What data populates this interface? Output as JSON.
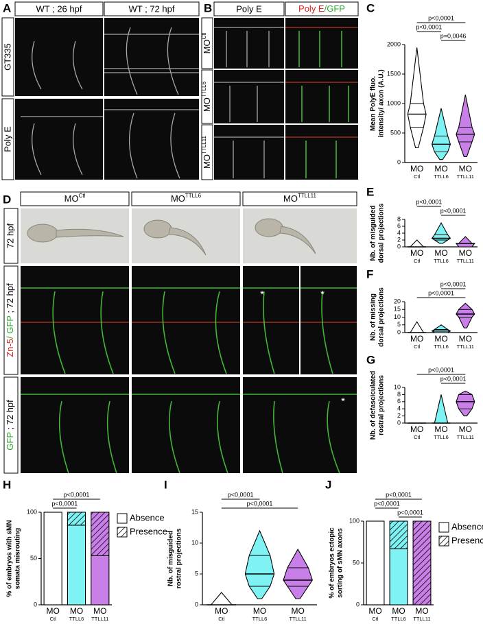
{
  "panels": {
    "A": {
      "letter": "A",
      "columns": [
        "WT ; 26 hpf",
        "WT ; 72 hpf"
      ],
      "rows": [
        "GT335",
        "Poly E"
      ]
    },
    "B": {
      "letter": "B",
      "column": "Poly E",
      "merge_header": [
        "Poly E",
        "/GFP"
      ],
      "rows": [
        {
          "base": "MO",
          "sup": "Ctl"
        },
        {
          "base": "MO",
          "sup": "TTLL6"
        },
        {
          "base": "MO",
          "sup": "TTLL11"
        }
      ]
    },
    "D": {
      "letter": "D",
      "columns": [
        {
          "base": "MO",
          "sup": "Ctl"
        },
        {
          "base": "MO",
          "sup": "TTLL6"
        },
        {
          "base": "MO",
          "sup": "TTLL11"
        }
      ],
      "rows": [
        [
          "72 hpf"
        ],
        [
          "Zn-5",
          "/ GFP",
          " ; 72 hpf"
        ],
        [
          "GFP",
          " ; 72 hpf"
        ]
      ],
      "asterisk": "*"
    }
  },
  "chart_data": [
    {
      "letter": "C",
      "type": "violin",
      "ylabel": [
        "Mean PolyE fluo.",
        "intensity/ axon (A.U.)"
      ],
      "categories": [
        "MO",
        "MO",
        "MO"
      ],
      "category_subs": [
        "Ctl",
        "TTLL6",
        "TTLL11"
      ],
      "colors": [
        "#ffffff",
        "#7ff3f3",
        "#c97fe8"
      ],
      "ylim": [
        0,
        2000
      ],
      "yticks": [
        0,
        500,
        1000,
        1500,
        2000
      ],
      "stats": [
        {
          "min": 250,
          "q1": 600,
          "median": 820,
          "q3": 1000,
          "max": 1950
        },
        {
          "min": 50,
          "q1": 180,
          "median": 310,
          "q3": 450,
          "max": 920
        },
        {
          "min": 100,
          "q1": 350,
          "median": 480,
          "q3": 600,
          "max": 1150
        }
      ],
      "comparisons": [
        {
          "pair": [
            0,
            2
          ],
          "label": "p<0,0001"
        },
        {
          "pair": [
            0,
            1
          ],
          "label": "p<0,0001"
        },
        {
          "pair": [
            1,
            2
          ],
          "label": "p=0,0046"
        }
      ]
    },
    {
      "letter": "E",
      "type": "violin",
      "ylabel": [
        "Nb. of misguided",
        "dorsal projections"
      ],
      "categories": [
        "MO",
        "MO",
        "MO"
      ],
      "category_subs": [
        "Ctl",
        "TTLL6",
        "TTLL11"
      ],
      "colors": [
        "#ffffff",
        "#7ff3f3",
        "#c97fe8"
      ],
      "ylim": [
        0,
        8
      ],
      "yticks": [
        0,
        2,
        4,
        6,
        8
      ],
      "stats": [
        {
          "min": 0,
          "q1": 0,
          "median": 0,
          "q3": 0,
          "max": 2
        },
        {
          "min": 1,
          "q1": 2,
          "median": 2.5,
          "q3": 3.5,
          "max": 7
        },
        {
          "min": 0,
          "q1": 0,
          "median": 1,
          "q3": 1,
          "max": 3
        }
      ],
      "comparisons": [
        {
          "pair": [
            0,
            1
          ],
          "label": "p<0,0001"
        },
        {
          "pair": [
            1,
            2
          ],
          "label": "p<0,0001"
        }
      ]
    },
    {
      "letter": "F",
      "type": "violin",
      "ylabel": [
        "Nb. of missing",
        "dorsal projections"
      ],
      "categories": [
        "MO",
        "MO",
        "MO"
      ],
      "category_subs": [
        "Ctl",
        "TTLL6",
        "TTLL11"
      ],
      "colors": [
        "#ffffff",
        "#7ff3f3",
        "#c97fe8"
      ],
      "ylim": [
        0,
        20
      ],
      "yticks": [
        0,
        5,
        10,
        15,
        20
      ],
      "stats": [
        {
          "min": 0,
          "q1": 0,
          "median": 0,
          "q3": 0,
          "max": 7
        },
        {
          "min": 0,
          "q1": 0,
          "median": 1,
          "q3": 2,
          "max": 5
        },
        {
          "min": 3,
          "q1": 10,
          "median": 12,
          "q3": 15,
          "max": 19
        }
      ],
      "comparisons": [
        {
          "pair": [
            1,
            2
          ],
          "label": "p<0,0001"
        },
        {
          "pair": [
            0,
            2
          ],
          "label": "p<0,0001"
        }
      ]
    },
    {
      "letter": "G",
      "type": "violin",
      "ylabel": [
        "Nb. of defasciculated",
        "rostral projections"
      ],
      "categories": [
        "MO",
        "MO",
        "MO"
      ],
      "category_subs": [
        "Ctl",
        "TTLL6",
        "TTLL11"
      ],
      "colors": [
        "#ffffff",
        "#7ff3f3",
        "#c97fe8"
      ],
      "ylim": [
        0,
        10
      ],
      "yticks": [
        0,
        2,
        4,
        6,
        8,
        10
      ],
      "stats": [
        {
          "min": 0,
          "q1": 0,
          "median": 0,
          "q3": 0,
          "max": 0
        },
        {
          "min": 0,
          "q1": 0,
          "median": 0,
          "q3": 0,
          "max": 8
        },
        {
          "min": 2,
          "q1": 4,
          "median": 6,
          "q3": 8,
          "max": 9
        }
      ],
      "comparisons": [
        {
          "pair": [
            0,
            2
          ],
          "label": "p<0,0001"
        },
        {
          "pair": [
            1,
            2
          ],
          "label": "p<0,0001"
        }
      ]
    },
    {
      "letter": "H",
      "type": "stacked_bar",
      "ylabel": [
        "% of embryos with sMN",
        "somata misrouting"
      ],
      "categories": [
        "MO",
        "MO",
        "MO"
      ],
      "category_subs": [
        "Ctl",
        "TTLL6",
        "TTLL11"
      ],
      "colors": [
        "#ffffff",
        "#7ff3f3",
        "#c97fe8"
      ],
      "ylim": [
        0,
        100
      ],
      "yticks": [
        0,
        50,
        100
      ],
      "legend": "right",
      "series": [
        {
          "name": "Absence",
          "values": [
            100,
            86,
            53
          ]
        },
        {
          "name": "Presence",
          "hatched": true,
          "values": [
            0,
            14,
            47
          ]
        }
      ],
      "comparisons": [
        {
          "pair": [
            0,
            2
          ],
          "label": "p<0,0001"
        },
        {
          "pair": [
            0,
            1
          ],
          "label": "p<0,0001"
        }
      ]
    },
    {
      "letter": "I",
      "type": "violin",
      "ylabel": [
        "Nb. of misguided",
        "rostral projections"
      ],
      "categories": [
        "MO",
        "MO",
        "MO"
      ],
      "category_subs": [
        "Ctl",
        "TTLL6",
        "TTLL11"
      ],
      "colors": [
        "#ffffff",
        "#7ff3f3",
        "#c97fe8"
      ],
      "ylim": [
        0,
        15
      ],
      "yticks": [
        0,
        5,
        10,
        15
      ],
      "stats": [
        {
          "min": 0,
          "q1": 0,
          "median": 0,
          "q3": 0,
          "max": 2
        },
        {
          "min": 1,
          "q1": 3,
          "median": 5,
          "q3": 8,
          "max": 12
        },
        {
          "min": 1,
          "q1": 3,
          "median": 4,
          "q3": 6,
          "max": 9
        }
      ],
      "comparisons": [
        {
          "pair": [
            0,
            1
          ],
          "label": "p<0,0001"
        },
        {
          "pair": [
            0,
            2
          ],
          "label": "p<0,0001"
        }
      ]
    },
    {
      "letter": "J",
      "type": "stacked_bar",
      "ylabel": [
        "% of embryos ectopic",
        "sorting of sMN axons"
      ],
      "categories": [
        "MO",
        "MO",
        "MO"
      ],
      "category_subs": [
        "Ctl",
        "TTLL6",
        "TTLL11"
      ],
      "colors": [
        "#ffffff",
        "#7ff3f3",
        "#c97fe8"
      ],
      "ylim": [
        0,
        100
      ],
      "yticks": [
        0,
        50,
        100
      ],
      "legend": "right",
      "series": [
        {
          "name": "Absence",
          "values": [
            100,
            67,
            0
          ]
        },
        {
          "name": "Presence",
          "hatched": true,
          "values": [
            0,
            33,
            100
          ]
        }
      ],
      "comparisons": [
        {
          "pair": [
            0,
            2
          ],
          "label": "p<0,0001"
        },
        {
          "pair": [
            0,
            1
          ],
          "label": "p<0,0001"
        },
        {
          "pair": [
            1,
            2
          ],
          "label": "p<0,0001"
        }
      ]
    }
  ]
}
